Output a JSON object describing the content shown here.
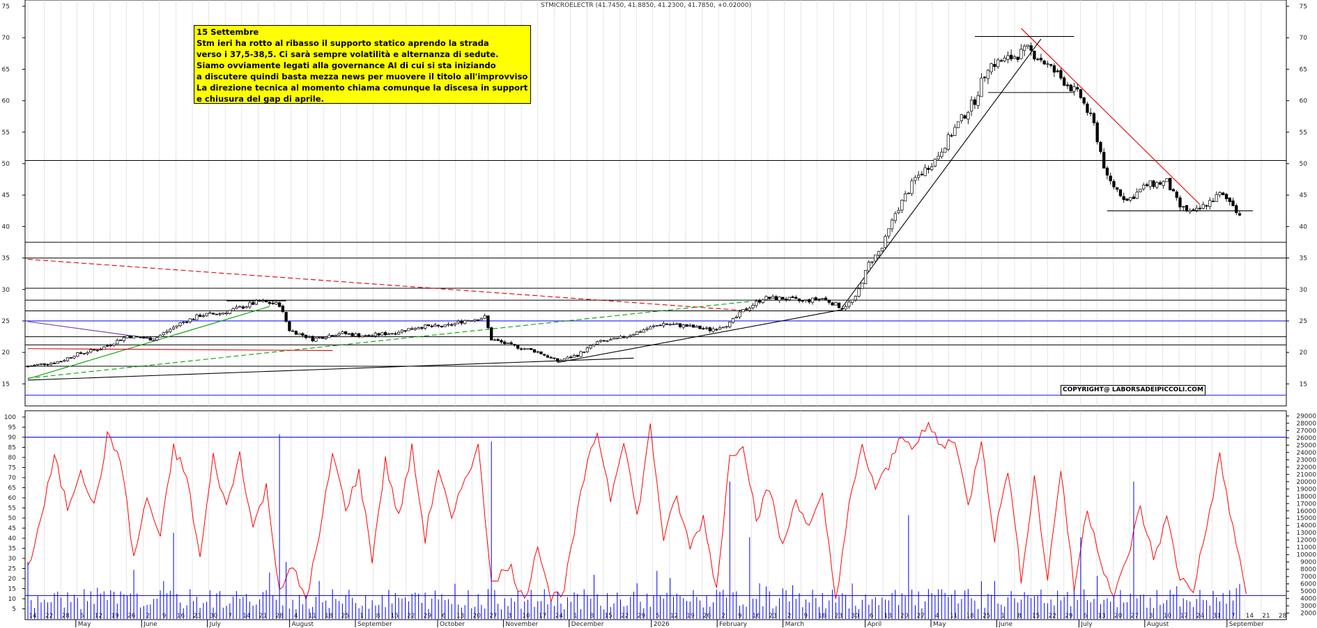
{
  "chart_title": "STMICROELECTR (41.7450, 41.8850, 41.2300, 41.7850, +0.02000)",
  "note": {
    "lines": [
      "15 Settembre",
      "Stm ieri ha rotto al ribasso il supporto statico aprendo la strada",
      "verso i 37,5-38,5. Ci sarà sempre volatilità e alternanza di sedute.",
      "Siamo ovviamente legati alla governance AI di cui si sta iniziando",
      "a discutere quindi basta mezza news per muovere il titolo all'improvviso.",
      "La direzione tecnica al momento chiama comunque la discesa in supporto",
      "e chiusura del gap di aprile."
    ]
  },
  "copyright": "COPYRIGHT@ LABORSADEIPICCOLI.COM",
  "colors": {
    "bull": "#ffffff",
    "bear": "#000000",
    "trend_green": "#00a000",
    "trend_red": "#e00000",
    "trend_purple": "#6a3ab0",
    "horizontal_blue": "#1a1aff",
    "oscillator": "#ff0000",
    "volume": "#0000ff"
  },
  "chart_data": [
    {
      "type": "candlestick",
      "yticks": [
        15,
        20,
        25,
        30,
        35,
        40,
        45,
        50,
        55,
        60,
        65,
        70,
        75
      ],
      "ylim": [
        11.5,
        76
      ],
      "x_days": [
        "14",
        "22",
        "28",
        "5",
        "12",
        "19",
        "26",
        "2",
        "9",
        "16",
        "23",
        "30",
        "7",
        "14",
        "21",
        "28",
        "4",
        "11",
        "18",
        "25",
        "1",
        "8",
        "15",
        "22",
        "29",
        "6",
        "13",
        "20",
        "27",
        "3",
        "10",
        "17",
        "24",
        "1",
        "8",
        "15",
        "22",
        "29",
        "5",
        "12",
        "19",
        "26",
        "2",
        "9",
        "16",
        "23",
        "2",
        "9",
        "16",
        "23",
        "30",
        "6",
        "13",
        "20",
        "27",
        "4",
        "11",
        "18",
        "25",
        "1",
        "8",
        "15",
        "22",
        "29",
        "6",
        "13",
        "20",
        "27",
        "3",
        "10",
        "17",
        "24",
        "31",
        "7",
        "14",
        "21",
        "28"
      ],
      "x_months": [
        "May",
        "June",
        "July",
        "August",
        "September",
        "October",
        "November",
        "December",
        "2026",
        "February",
        "March",
        "April",
        "May",
        "June",
        "July",
        "August",
        "September"
      ],
      "session_count": 350,
      "ohlc_anchors": [
        [
          0,
          17.8
        ],
        [
          10,
          18.6
        ],
        [
          14,
          19.6
        ],
        [
          22,
          20.6
        ],
        [
          30,
          22.6
        ],
        [
          38,
          22.1
        ],
        [
          46,
          24.6
        ],
        [
          52,
          25.9
        ],
        [
          58,
          26.2
        ],
        [
          64,
          27.1
        ],
        [
          70,
          28.1
        ],
        [
          76,
          27.6
        ],
        [
          79,
          23.6
        ],
        [
          86,
          22.1
        ],
        [
          94,
          23.1
        ],
        [
          102,
          22.6
        ],
        [
          110,
          23.1
        ],
        [
          118,
          24.1
        ],
        [
          126,
          24.1
        ],
        [
          132,
          25.1
        ],
        [
          138,
          25.6
        ],
        [
          140,
          22.1
        ],
        [
          146,
          21.1
        ],
        [
          154,
          20.1
        ],
        [
          160,
          18.6
        ],
        [
          166,
          19.6
        ],
        [
          172,
          21.6
        ],
        [
          178,
          22.1
        ],
        [
          186,
          23.6
        ],
        [
          192,
          24.6
        ],
        [
          200,
          24.1
        ],
        [
          206,
          23.6
        ],
        [
          212,
          24.6
        ],
        [
          216,
          26.6
        ],
        [
          222,
          28.6
        ],
        [
          228,
          28.6
        ],
        [
          234,
          28.1
        ],
        [
          240,
          28.6
        ],
        [
          246,
          27.1
        ],
        [
          250,
          28.6
        ],
        [
          254,
          34.1
        ],
        [
          258,
          36.6
        ],
        [
          262,
          42.1
        ],
        [
          268,
          47.6
        ],
        [
          274,
          50.6
        ],
        [
          280,
          55.6
        ],
        [
          286,
          60.1
        ],
        [
          290,
          65.6
        ],
        [
          296,
          66.6
        ],
        [
          302,
          68.1
        ],
        [
          306,
          66.6
        ],
        [
          312,
          63.6
        ],
        [
          318,
          60.6
        ],
        [
          322,
          56.1
        ],
        [
          326,
          47.6
        ],
        [
          332,
          44.1
        ],
        [
          338,
          46.6
        ],
        [
          344,
          47.1
        ],
        [
          348,
          43.1
        ],
        [
          352,
          42.1
        ],
        [
          356,
          43.6
        ],
        [
          360,
          45.1
        ],
        [
          364,
          43.6
        ],
        [
          366,
          41.8
        ]
      ],
      "support_levels": [
        17.8,
        21.2,
        22.5,
        25,
        26.6,
        28.3,
        30.2,
        35,
        37.5,
        50.5
      ],
      "support_levels_blue": [
        13.2,
        25
      ],
      "trendlines": [
        {
          "color": "trend_green",
          "dashed": false,
          "from": [
            0,
            15.8
          ],
          "to": [
            73,
            27.3
          ]
        },
        {
          "color": "trend_green",
          "dashed": true,
          "from": [
            0,
            15.9
          ],
          "to": [
            218,
            28.1
          ]
        },
        {
          "color": "trend_red",
          "dashed": true,
          "from": [
            0,
            34.8
          ],
          "to": [
            218,
            26.6
          ]
        },
        {
          "color": "trend_red",
          "dashed": false,
          "from": [
            0,
            20.6
          ],
          "to": [
            92,
            20.3
          ]
        },
        {
          "color": "trend_red",
          "dashed": false,
          "from": [
            300,
            71.5
          ],
          "to": [
            354,
            43.5
          ]
        },
        {
          "color": "trend_purple",
          "dashed": false,
          "from": [
            0,
            24.9
          ],
          "to": [
            39,
            22.1
          ]
        },
        {
          "color": "bear",
          "dashed": false,
          "from": [
            0,
            15.6
          ],
          "to": [
            183,
            19.1
          ]
        },
        {
          "color": "bear",
          "dashed": false,
          "from": [
            160,
            18.4
          ],
          "to": [
            246,
            26.8
          ]
        },
        {
          "color": "bear",
          "dashed": false,
          "from": [
            246,
            27.2
          ],
          "to": [
            306,
            69.8
          ]
        },
        {
          "color": "bear",
          "dashed": false,
          "from": [
            286,
            70.2
          ],
          "to": [
            316,
            70.2
          ]
        },
        {
          "color": "bear",
          "dashed": false,
          "from": [
            290,
            61.3
          ],
          "to": [
            316,
            61.3
          ]
        },
        {
          "color": "bear",
          "dashed": false,
          "from": [
            326,
            42.5
          ],
          "to": [
            370,
            42.5
          ]
        },
        {
          "color": "bear",
          "dashed": false,
          "from": [
            60,
            28.2
          ],
          "to": [
            78,
            28.2
          ]
        }
      ]
    },
    {
      "type": "line",
      "name": "oscillator",
      "yticks": [
        5,
        10,
        15,
        20,
        25,
        30,
        35,
        40,
        45,
        50,
        55,
        60,
        65,
        70,
        75,
        80,
        85,
        90,
        95,
        100
      ],
      "ylim": [
        0,
        101
      ],
      "reference_levels": [
        90
      ],
      "anchors": [
        [
          0,
          25
        ],
        [
          4,
          50
        ],
        [
          8,
          80
        ],
        [
          12,
          55
        ],
        [
          16,
          75
        ],
        [
          20,
          55
        ],
        [
          24,
          90
        ],
        [
          28,
          80
        ],
        [
          32,
          30
        ],
        [
          36,
          60
        ],
        [
          40,
          40
        ],
        [
          44,
          85
        ],
        [
          48,
          70
        ],
        [
          52,
          30
        ],
        [
          56,
          80
        ],
        [
          60,
          55
        ],
        [
          64,
          82
        ],
        [
          68,
          45
        ],
        [
          72,
          65
        ],
        [
          76,
          15
        ],
        [
          80,
          25
        ],
        [
          84,
          10
        ],
        [
          88,
          40
        ],
        [
          92,
          82
        ],
        [
          96,
          55
        ],
        [
          100,
          72
        ],
        [
          104,
          30
        ],
        [
          108,
          78
        ],
        [
          112,
          50
        ],
        [
          116,
          84
        ],
        [
          120,
          40
        ],
        [
          124,
          75
        ],
        [
          128,
          48
        ],
        [
          132,
          70
        ],
        [
          136,
          85
        ],
        [
          140,
          20
        ],
        [
          146,
          25
        ],
        [
          150,
          8
        ],
        [
          154,
          38
        ],
        [
          158,
          10
        ],
        [
          162,
          15
        ],
        [
          168,
          70
        ],
        [
          172,
          93
        ],
        [
          176,
          60
        ],
        [
          180,
          90
        ],
        [
          184,
          50
        ],
        [
          188,
          95
        ],
        [
          192,
          40
        ],
        [
          196,
          60
        ],
        [
          200,
          35
        ],
        [
          204,
          50
        ],
        [
          208,
          15
        ],
        [
          212,
          80
        ],
        [
          216,
          88
        ],
        [
          220,
          50
        ],
        [
          224,
          65
        ],
        [
          228,
          35
        ],
        [
          232,
          60
        ],
        [
          236,
          45
        ],
        [
          240,
          60
        ],
        [
          244,
          10
        ],
        [
          248,
          55
        ],
        [
          252,
          85
        ],
        [
          256,
          65
        ],
        [
          260,
          75
        ],
        [
          264,
          92
        ],
        [
          268,
          85
        ],
        [
          272,
          96
        ],
        [
          276,
          85
        ],
        [
          280,
          90
        ],
        [
          284,
          55
        ],
        [
          288,
          90
        ],
        [
          292,
          40
        ],
        [
          296,
          75
        ],
        [
          300,
          20
        ],
        [
          304,
          70
        ],
        [
          308,
          20
        ],
        [
          312,
          75
        ],
        [
          316,
          15
        ],
        [
          320,
          55
        ],
        [
          324,
          30
        ],
        [
          328,
          10
        ],
        [
          332,
          30
        ],
        [
          336,
          55
        ],
        [
          340,
          30
        ],
        [
          344,
          50
        ],
        [
          348,
          20
        ],
        [
          352,
          15
        ],
        [
          356,
          45
        ],
        [
          360,
          80
        ],
        [
          364,
          45
        ],
        [
          368,
          12
        ]
      ]
    },
    {
      "type": "bar",
      "name": "volume",
      "yticks": [
        2000,
        3000,
        4000,
        5000,
        6000,
        7000,
        8000,
        9000,
        10000,
        11000,
        12000,
        13000,
        14000,
        15000,
        16000,
        17000,
        18000,
        19000,
        20000,
        21000,
        22000,
        23000,
        24000,
        25000,
        26000,
        27000,
        28000,
        29000
      ],
      "ylim": [
        1200,
        29800
      ],
      "reference_levels": [
        4400
      ],
      "baseline": 2500,
      "spikes": [
        [
          0,
          9000
        ],
        [
          30,
          4400
        ],
        [
          44,
          13000
        ],
        [
          76,
          26500
        ],
        [
          78,
          9000
        ],
        [
          88,
          6400
        ],
        [
          140,
          25500
        ],
        [
          194,
          6800
        ],
        [
          212,
          20000
        ],
        [
          218,
          12400
        ],
        [
          266,
          15400
        ],
        [
          292,
          6400
        ],
        [
          318,
          12400
        ],
        [
          334,
          20000
        ],
        [
          366,
          6000
        ]
      ]
    }
  ]
}
